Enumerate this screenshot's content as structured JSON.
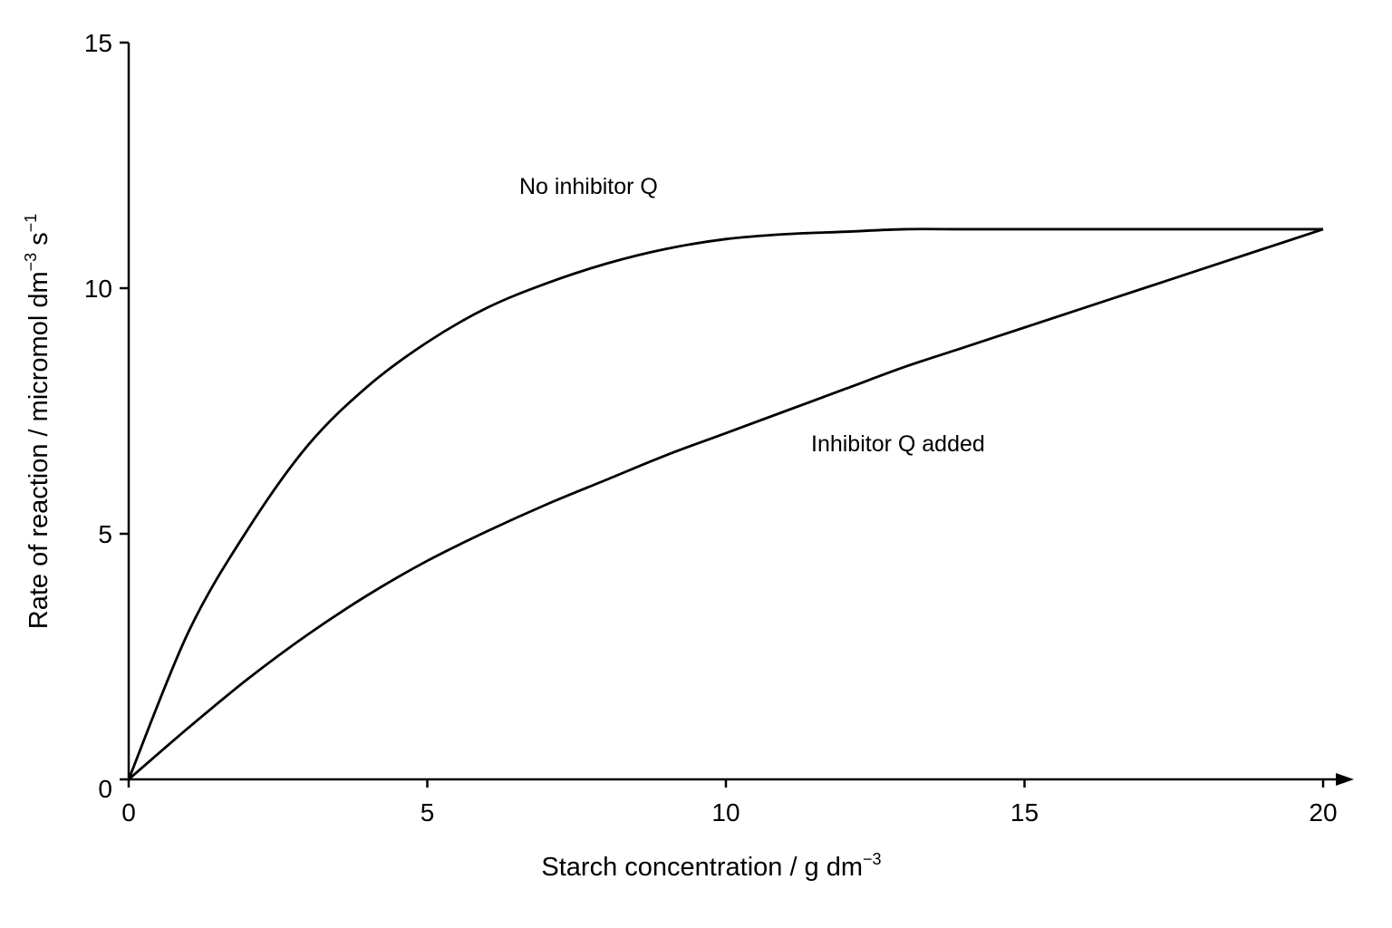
{
  "chart_data": {
    "type": "line",
    "xlabel": "Starch concentration / g dm",
    "xlabel_sup": "−3",
    "ylabel": "Rate of reaction / micromol dm",
    "ylabel_sup1": "−3",
    "ylabel_mid": " s",
    "ylabel_sup2": "−1",
    "xlim": [
      0,
      20
    ],
    "ylim": [
      0,
      15
    ],
    "x_ticks": [
      0,
      5,
      10,
      15,
      20
    ],
    "y_ticks": [
      0,
      5,
      10,
      15
    ],
    "x_tick_labels": [
      "0",
      "5",
      "10",
      "15",
      "20"
    ],
    "y_tick_labels": [
      "0",
      "5",
      "10",
      "15"
    ],
    "grid": false,
    "series": [
      {
        "name": "No inhibitor Q",
        "x": [
          0,
          1,
          2,
          3,
          4,
          5,
          6,
          7,
          8,
          9,
          10,
          11,
          12,
          13,
          14,
          15,
          16,
          17,
          18,
          19,
          20
        ],
        "y": [
          0,
          3.0,
          5.1,
          6.8,
          8.0,
          8.9,
          9.6,
          10.1,
          10.5,
          10.8,
          11.0,
          11.1,
          11.15,
          11.2,
          11.2,
          11.2,
          11.2,
          11.2,
          11.2,
          11.2,
          11.2
        ]
      },
      {
        "name": "Inhibitor Q added",
        "x": [
          0,
          1,
          2,
          3,
          4,
          5,
          6,
          7,
          8,
          9,
          10,
          11,
          12,
          13,
          14,
          15,
          16,
          17,
          18,
          19,
          20
        ],
        "y": [
          0,
          1.05,
          2.05,
          2.95,
          3.75,
          4.45,
          5.05,
          5.6,
          6.1,
          6.6,
          7.05,
          7.5,
          7.95,
          8.4,
          8.8,
          9.2,
          9.6,
          10.0,
          10.4,
          10.8,
          11.2
        ]
      }
    ]
  }
}
